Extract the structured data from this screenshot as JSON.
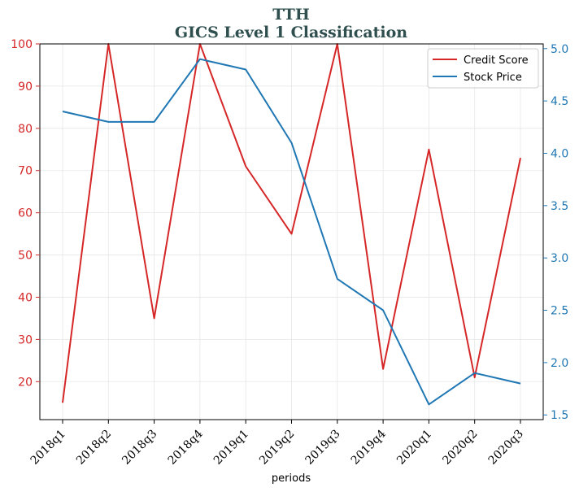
{
  "chart_data": {
    "type": "line",
    "title": "TTH",
    "subtitle": "GICS Level 1 Classification",
    "xlabel": "periods",
    "categories": [
      "2018q1",
      "2018q2",
      "2018q3",
      "2018q4",
      "2019q1",
      "2019q2",
      "2019q3",
      "2019q4",
      "2020q1",
      "2020q2",
      "2020q3"
    ],
    "y_left": {
      "ylim": [
        11,
        100
      ],
      "ticks": [
        "20",
        "30",
        "40",
        "50",
        "60",
        "70",
        "80",
        "90",
        "100"
      ],
      "color": "#d62728"
    },
    "y_right": {
      "ylim": [
        1.455,
        5.045
      ],
      "ticks": [
        "1.5",
        "2.0",
        "2.5",
        "3.0",
        "3.5",
        "4.0",
        "4.5",
        "5.0"
      ],
      "color": "#1f77b4"
    },
    "series": [
      {
        "name": "Credit Score",
        "axis": "left",
        "color": "#d62728",
        "values": [
          15,
          100,
          35,
          100,
          71,
          55,
          100,
          23,
          75,
          21,
          73
        ]
      },
      {
        "name": "Stock Price",
        "axis": "right",
        "color": "#1f77b4",
        "values": [
          4.4,
          4.3,
          4.3,
          4.9,
          4.8,
          4.1,
          2.8,
          2.5,
          1.6,
          1.9,
          1.8
        ]
      }
    ],
    "grid": true,
    "legend": "top-right"
  }
}
